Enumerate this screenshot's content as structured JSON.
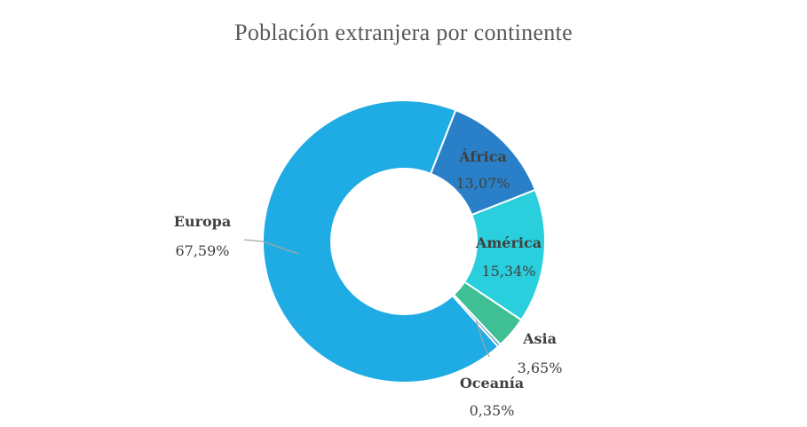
{
  "chart_data": {
    "type": "pie",
    "variant": "donut",
    "title": "Población extranjera por continente",
    "categories": [
      "Europa",
      "África",
      "América",
      "Asia",
      "Oceanía"
    ],
    "values": [
      67.59,
      13.07,
      15.34,
      3.65,
      0.35
    ],
    "value_labels": [
      "67,59%",
      "13,07%",
      "15,34%",
      "3,65%",
      "0,35%"
    ],
    "colors": {
      "Europa": "#1fabe3",
      "África": "#2a80c8",
      "América": "#29cfdc",
      "Asia": "#3fbf94",
      "Oceanía": "#4c8fb5"
    },
    "legend": "none"
  }
}
